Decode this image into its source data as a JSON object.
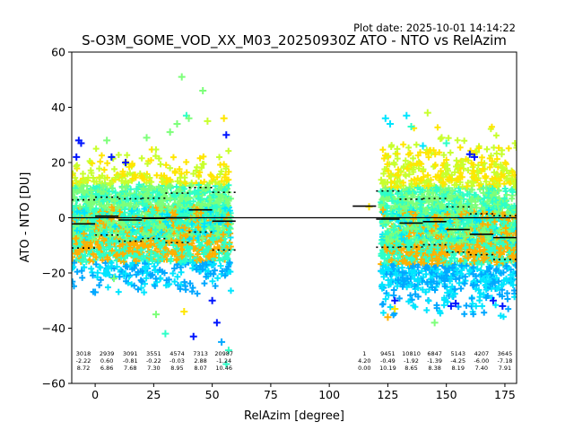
{
  "chart_data": {
    "type": "scatter",
    "title": "S-O3M_GOME_VOD_XX_M03_20250930Z ATO - NTO vs RelAzim",
    "plot_date": "Plot date: 2025-10-01 14:14:22",
    "xlabel": "RelAzim [degree]",
    "ylabel": "ATO - NTO [DU]",
    "xlim": [
      -10,
      180
    ],
    "ylim": [
      -60,
      60
    ],
    "xticks": [
      0,
      25,
      50,
      75,
      100,
      125,
      150,
      175
    ],
    "yticks": [
      -60,
      -40,
      -20,
      0,
      20,
      40,
      60
    ],
    "grid": false,
    "colormap": [
      "#0015ff",
      "#00a8ff",
      "#00e5ff",
      "#2effc8",
      "#7dff7a",
      "#c8ff2e",
      "#ffe600",
      "#ffb000"
    ],
    "data_clusters": [
      {
        "x_range": [
          -10,
          58
        ],
        "y_range": [
          -25,
          22
        ],
        "y_center": -2
      },
      {
        "x_range": [
          122,
          180
        ],
        "y_range": [
          -33,
          30
        ],
        "y_center": -3
      }
    ],
    "bins": [
      {
        "x": -5,
        "count": "3018",
        "mean": "-2.22",
        "std": "8.72"
      },
      {
        "x": 5,
        "count": "2939",
        "mean": "0.60",
        "std": "6.86"
      },
      {
        "x": 15,
        "count": "3091",
        "mean": "-0.81",
        "std": "7.68"
      },
      {
        "x": 25,
        "count": "3551",
        "mean": "-0.22",
        "std": "7.30"
      },
      {
        "x": 35,
        "count": "4574",
        "mean": "-0.03",
        "std": "8.95"
      },
      {
        "x": 45,
        "count": "7313",
        "mean": "2.88",
        "std": "8.07"
      },
      {
        "x": 55,
        "count": "20987",
        "mean": "-1.24",
        "std": "10.46"
      },
      {
        "x": 115,
        "count": "1",
        "mean": "4.20",
        "std": "0.00"
      },
      {
        "x": 125,
        "count": "9451",
        "mean": "-0.49",
        "std": "10.19"
      },
      {
        "x": 135,
        "count": "10810",
        "mean": "-1.92",
        "std": "8.65"
      },
      {
        "x": 145,
        "count": "6847",
        "mean": "-1.39",
        "std": "8.38"
      },
      {
        "x": 155,
        "count": "5143",
        "mean": "-4.25",
        "std": "8.19"
      },
      {
        "x": 165,
        "count": "4207",
        "mean": "-6.00",
        "std": "7.40"
      },
      {
        "x": 175,
        "count": "3645",
        "mean": "-7.18",
        "std": "7.91"
      }
    ],
    "outliers": [
      {
        "x": -8,
        "y": 22,
        "c": "#0015ff"
      },
      {
        "x": -7,
        "y": 28,
        "c": "#0015ff"
      },
      {
        "x": -6,
        "y": 27,
        "c": "#0015ff"
      },
      {
        "x": 5,
        "y": 28,
        "c": "#7dff7a"
      },
      {
        "x": 7,
        "y": 22,
        "c": "#0015ff"
      },
      {
        "x": 13,
        "y": 20,
        "c": "#0015ff"
      },
      {
        "x": 22,
        "y": 29,
        "c": "#7dff7a"
      },
      {
        "x": 26,
        "y": -35,
        "c": "#7dff7a"
      },
      {
        "x": 30,
        "y": -42,
        "c": "#2effc8"
      },
      {
        "x": 32,
        "y": 31,
        "c": "#7dff7a"
      },
      {
        "x": 35,
        "y": 34,
        "c": "#7dff7a"
      },
      {
        "x": 37,
        "y": 51,
        "c": "#7dff7a"
      },
      {
        "x": 39,
        "y": 37,
        "c": "#2effc8"
      },
      {
        "x": 40,
        "y": 36,
        "c": "#7dff7a"
      },
      {
        "x": 38,
        "y": -34,
        "c": "#ffe600"
      },
      {
        "x": 42,
        "y": -43,
        "c": "#0015ff"
      },
      {
        "x": 46,
        "y": 46,
        "c": "#7dff7a"
      },
      {
        "x": 48,
        "y": 35,
        "c": "#c8ff2e"
      },
      {
        "x": 50,
        "y": -30,
        "c": "#0015ff"
      },
      {
        "x": 52,
        "y": -38,
        "c": "#0015ff"
      },
      {
        "x": 54,
        "y": -45,
        "c": "#00a8ff"
      },
      {
        "x": 56,
        "y": -53,
        "c": "#2effc8"
      },
      {
        "x": 57,
        "y": -48,
        "c": "#2effc8"
      },
      {
        "x": 55,
        "y": 36,
        "c": "#ffe600"
      },
      {
        "x": 56,
        "y": 30,
        "c": "#0015ff"
      },
      {
        "x": 8,
        "y": -22,
        "c": "#7dff7a"
      },
      {
        "x": 0,
        "y": -27,
        "c": "#00a8ff"
      },
      {
        "x": 117,
        "y": 4,
        "c": "#ffe600"
      },
      {
        "x": 124,
        "y": 36,
        "c": "#00e5ff"
      },
      {
        "x": 126,
        "y": 34,
        "c": "#00e5ff"
      },
      {
        "x": 128,
        "y": -33,
        "c": "#ffe600"
      },
      {
        "x": 125,
        "y": -36,
        "c": "#ffb000"
      },
      {
        "x": 133,
        "y": 37,
        "c": "#00e5ff"
      },
      {
        "x": 135,
        "y": 33,
        "c": "#2effc8"
      },
      {
        "x": 140,
        "y": 26,
        "c": "#00e5ff"
      },
      {
        "x": 142,
        "y": 38,
        "c": "#c8ff2e"
      },
      {
        "x": 145,
        "y": -38,
        "c": "#7dff7a"
      },
      {
        "x": 148,
        "y": 29,
        "c": "#c8ff2e"
      },
      {
        "x": 150,
        "y": 27,
        "c": "#2effc8"
      },
      {
        "x": 152,
        "y": -32,
        "c": "#0015ff"
      },
      {
        "x": 154,
        "y": -31,
        "c": "#0015ff"
      },
      {
        "x": 160,
        "y": 23,
        "c": "#0015ff"
      },
      {
        "x": 162,
        "y": 22,
        "c": "#0015ff"
      },
      {
        "x": 170,
        "y": -30,
        "c": "#0015ff"
      },
      {
        "x": 174,
        "y": -32,
        "c": "#0015ff"
      },
      {
        "x": 178,
        "y": 14,
        "c": "#c8ff2e"
      },
      {
        "x": 165,
        "y": 20,
        "c": "#ffe600"
      },
      {
        "x": 128,
        "y": -30,
        "c": "#0015ff"
      }
    ]
  }
}
